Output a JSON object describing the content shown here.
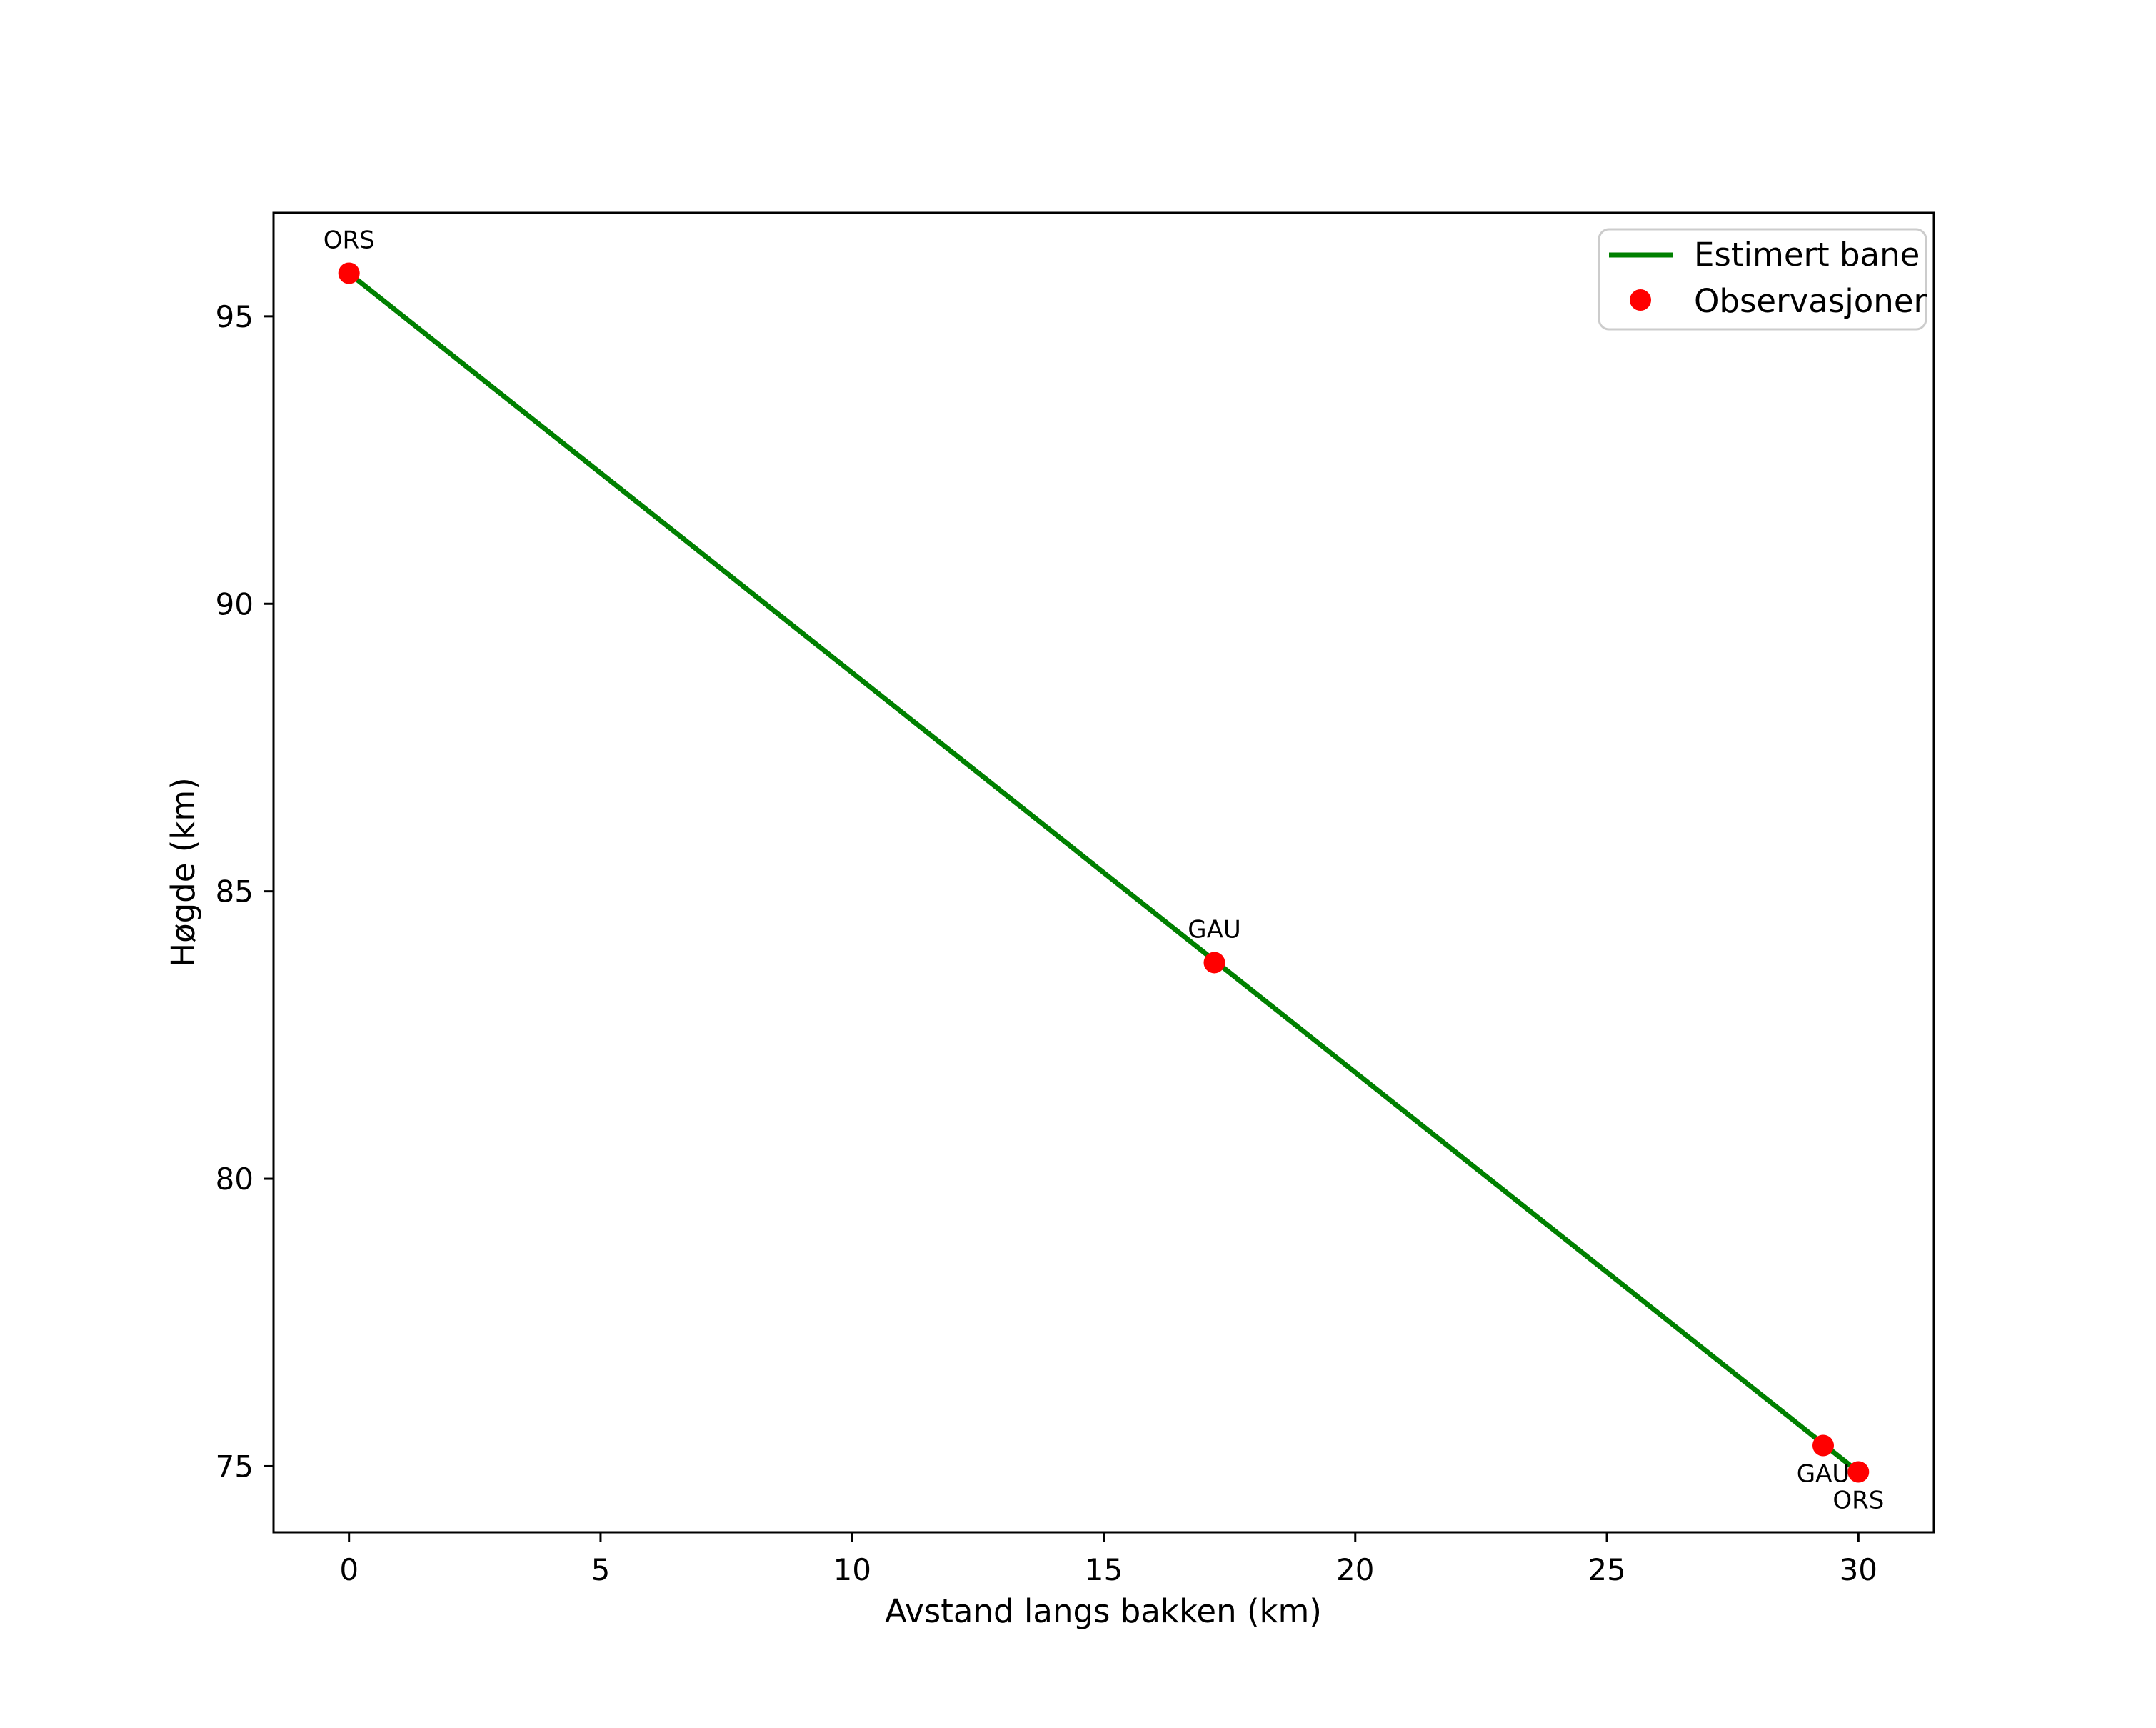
{
  "figure": {
    "background": "#ffffff",
    "title": ""
  },
  "chart_data": {
    "type": "line",
    "title": "",
    "xlabel": "Avstand langs bakken (km)",
    "ylabel": "Høgde (km)",
    "xlim": [
      -1.5,
      31.5
    ],
    "ylim": [
      73.85,
      96.8
    ],
    "xticks": [
      0,
      5,
      10,
      15,
      20,
      25,
      30
    ],
    "yticks": [
      75,
      80,
      85,
      90,
      95
    ],
    "grid": false,
    "colors": {
      "line": "#008000",
      "marker": "#ff0000",
      "legend_border": "#cccccc",
      "text": "#000000"
    },
    "legend": {
      "position": "upper right",
      "entries": [
        {
          "label": "Estimert bane",
          "type": "line",
          "color": "#008000"
        },
        {
          "label": "Observasjoner",
          "type": "marker",
          "color": "#ff0000"
        }
      ]
    },
    "series": [
      {
        "name": "Estimert bane",
        "type": "line",
        "color": "#008000",
        "x": [
          0.0,
          30.0
        ],
        "y": [
          95.75,
          74.9
        ]
      },
      {
        "name": "Observasjoner",
        "type": "scatter",
        "color": "#ff0000",
        "points": [
          {
            "x": 0.0,
            "y": 95.75,
            "label": "ORS",
            "label_pos": "above"
          },
          {
            "x": 17.2,
            "y": 83.76,
            "label": "GAU",
            "label_pos": "above"
          },
          {
            "x": 29.3,
            "y": 75.36,
            "label": "GAU",
            "label_pos": "below"
          },
          {
            "x": 30.0,
            "y": 74.9,
            "label": "ORS",
            "label_pos": "below"
          }
        ]
      }
    ]
  }
}
